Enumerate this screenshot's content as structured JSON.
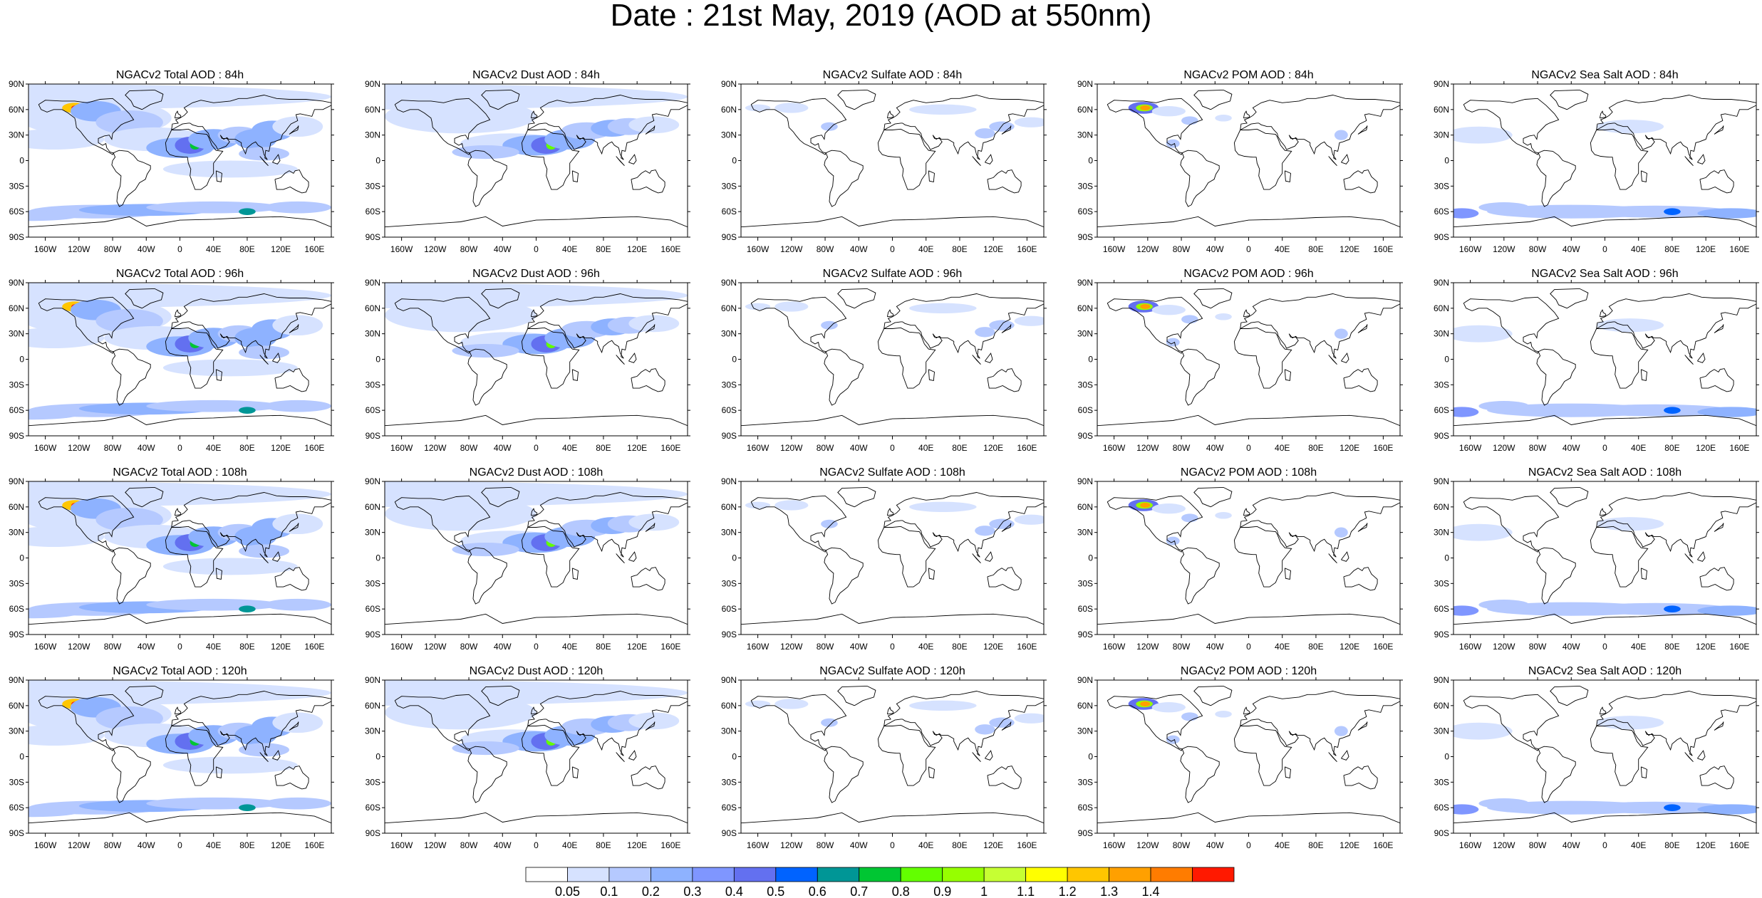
{
  "title": "Date : 21st May, 2019 (AOD at 550nm)",
  "panels": [
    [
      "NGACv2 Total AOD : 84h",
      "NGACv2 Dust AOD : 84h",
      "NGACv2 Sulfate AOD : 84h",
      "NGACv2 POM AOD : 84h",
      "NGACv2 Sea Salt AOD : 84h"
    ],
    [
      "NGACv2 Total AOD : 96h",
      "NGACv2 Dust AOD : 96h",
      "NGACv2 Sulfate AOD : 96h",
      "NGACv2 POM AOD : 96h",
      "NGACv2 Sea Salt AOD : 96h"
    ],
    [
      "NGACv2 Total AOD : 108h",
      "NGACv2 Dust AOD : 108h",
      "NGACv2 Sulfate AOD : 108h",
      "NGACv2 POM AOD : 108h",
      "NGACv2 Sea Salt AOD : 108h"
    ],
    [
      "NGACv2 Total AOD : 120h",
      "NGACv2 Dust AOD : 120h",
      "NGACv2 Sulfate AOD : 120h",
      "NGACv2 POM AOD : 120h",
      "NGACv2 Sea Salt  AOD : 120h"
    ]
  ],
  "lat_ticks": [
    "90N",
    "60N",
    "30N",
    "0",
    "30S",
    "60S",
    "90S"
  ],
  "lon_ticks": [
    "160W",
    "120W",
    "80W",
    "40W",
    "0",
    "40E",
    "80E",
    "120E",
    "160E"
  ],
  "colorbar": {
    "labels": [
      "0.05",
      "0.1",
      "0.2",
      "0.3",
      "0.4",
      "0.5",
      "0.6",
      "0.7",
      "0.8",
      "0.9",
      "1",
      "1.1",
      "1.2",
      "1.3",
      "1.4"
    ],
    "colors": [
      "#ffffff",
      "#d6e2ff",
      "#b5c9ff",
      "#8eb2ff",
      "#7f96ff",
      "#6370f0",
      "#0063ff",
      "#009696",
      "#00c633",
      "#63ff00",
      "#96ff00",
      "#c6ff33",
      "#ffff00",
      "#ffc600",
      "#ffa000",
      "#ff7c00",
      "#ff1900"
    ]
  }
}
